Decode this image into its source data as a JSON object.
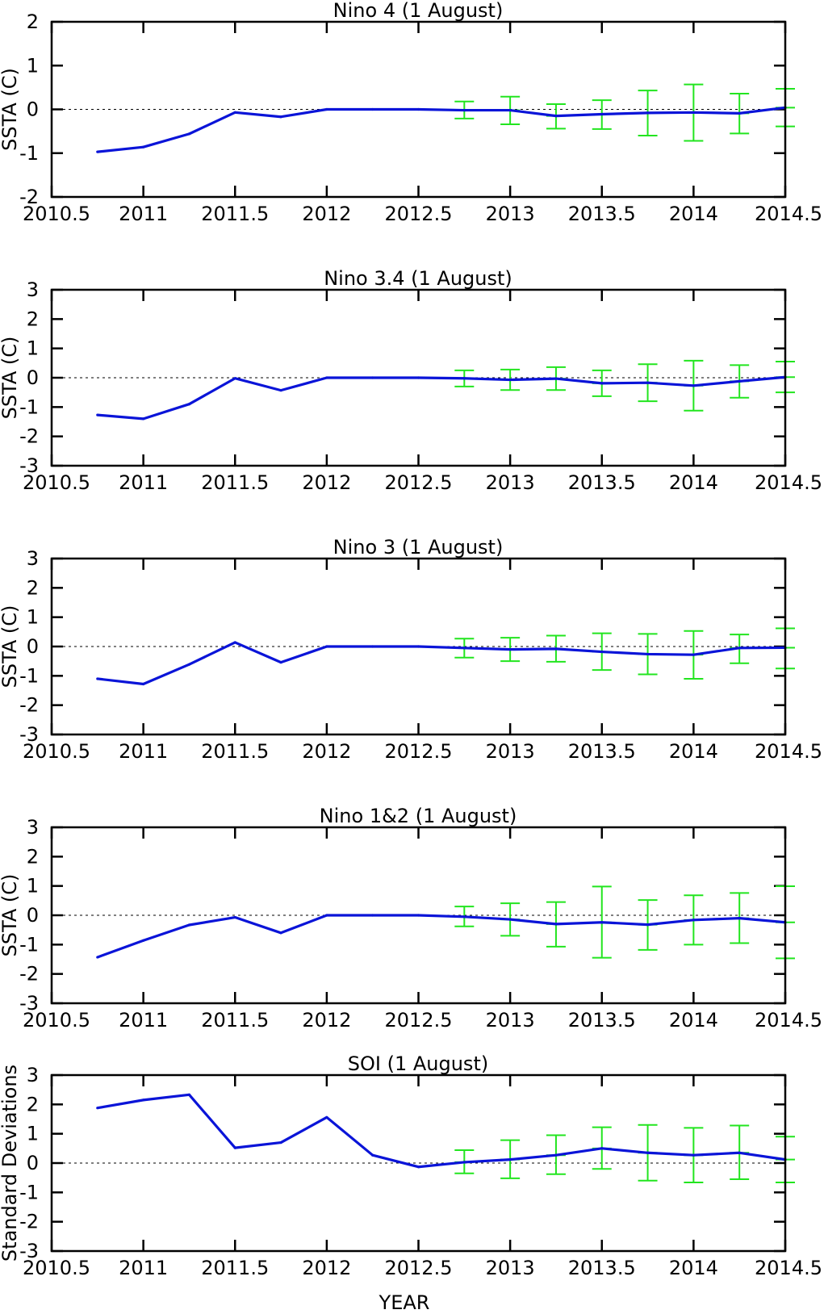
{
  "figure": {
    "xlabel": "YEAR",
    "colors": {
      "line": "#0a14d8",
      "errorbar": "#22e51f",
      "frame": "#000000",
      "zero_line": "#000000"
    }
  },
  "chart_data": [
    {
      "type": "line",
      "title": "Nino 4 (1 August)",
      "ylabel": "SSTA (C)",
      "xlim": [
        2010.5,
        2014.5
      ],
      "ylim": [
        -2,
        2
      ],
      "xticks": [
        "2010.5",
        "2011",
        "2011.5",
        "2012",
        "2012.5",
        "2013",
        "2013.5",
        "2014",
        "2014.5"
      ],
      "yticks": [
        "-2",
        "-1",
        "0",
        "1",
        "2"
      ],
      "series": [
        {
          "x": [
            2010.75,
            2011.0,
            2011.25,
            2011.5,
            2011.75,
            2012.0,
            2012.25,
            2012.5,
            2012.75,
            2013.0,
            2013.25,
            2013.5,
            2013.75,
            2014.0,
            2014.25,
            2014.5
          ],
          "y": [
            -0.97,
            -0.86,
            -0.56,
            -0.07,
            -0.17,
            0.0,
            0.0,
            0.0,
            -0.02,
            -0.02,
            -0.15,
            -0.11,
            -0.08,
            -0.07,
            -0.09,
            0.04
          ]
        }
      ],
      "errorbars": {
        "x": [
          2012.75,
          2013.0,
          2013.25,
          2013.5,
          2013.75,
          2014.0,
          2014.25,
          2014.5
        ],
        "y": [
          -0.02,
          -0.02,
          -0.15,
          -0.11,
          -0.08,
          -0.07,
          -0.09,
          0.04
        ],
        "low": [
          -0.21,
          -0.34,
          -0.44,
          -0.45,
          -0.6,
          -0.72,
          -0.55,
          -0.39
        ],
        "high": [
          0.18,
          0.29,
          0.12,
          0.21,
          0.43,
          0.57,
          0.36,
          0.47
        ]
      }
    },
    {
      "type": "line",
      "title": "Nino 3.4 (1 August)",
      "ylabel": "SSTA (C)",
      "xlim": [
        2010.5,
        2014.5
      ],
      "ylim": [
        -3,
        3
      ],
      "xticks": [
        "2010.5",
        "2011",
        "2011.5",
        "2012",
        "2012.5",
        "2013",
        "2013.5",
        "2014",
        "2014.5"
      ],
      "yticks": [
        "-3",
        "-2",
        "-1",
        "0",
        "1",
        "2",
        "3"
      ],
      "series": [
        {
          "x": [
            2010.75,
            2011.0,
            2011.25,
            2011.5,
            2011.75,
            2012.0,
            2012.25,
            2012.5,
            2012.75,
            2013.0,
            2013.25,
            2013.5,
            2013.75,
            2014.0,
            2014.25,
            2014.5
          ],
          "y": [
            -1.27,
            -1.4,
            -0.9,
            -0.02,
            -0.43,
            0.0,
            0.0,
            0.0,
            -0.02,
            -0.07,
            -0.03,
            -0.19,
            -0.17,
            -0.27,
            -0.12,
            0.02
          ]
        }
      ],
      "errorbars": {
        "x": [
          2012.75,
          2013.0,
          2013.25,
          2013.5,
          2013.75,
          2014.0,
          2014.25,
          2014.5
        ],
        "y": [
          -0.02,
          -0.07,
          -0.03,
          -0.19,
          -0.17,
          -0.27,
          -0.12,
          0.02
        ],
        "low": [
          -0.3,
          -0.42,
          -0.42,
          -0.63,
          -0.8,
          -1.12,
          -0.68,
          -0.5
        ],
        "high": [
          0.25,
          0.28,
          0.36,
          0.25,
          0.46,
          0.58,
          0.43,
          0.55
        ]
      }
    },
    {
      "type": "line",
      "title": "Nino 3 (1 August)",
      "ylabel": "SSTA (C)",
      "xlim": [
        2010.5,
        2014.5
      ],
      "ylim": [
        -3,
        3
      ],
      "xticks": [
        "2010.5",
        "2011",
        "2011.5",
        "2012",
        "2012.5",
        "2013",
        "2013.5",
        "2014",
        "2014.5"
      ],
      "yticks": [
        "-3",
        "-2",
        "-1",
        "0",
        "1",
        "2",
        "3"
      ],
      "series": [
        {
          "x": [
            2010.75,
            2011.0,
            2011.25,
            2011.5,
            2011.75,
            2012.0,
            2012.25,
            2012.5,
            2012.75,
            2013.0,
            2013.25,
            2013.5,
            2013.75,
            2014.0,
            2014.25,
            2014.5
          ],
          "y": [
            -1.1,
            -1.28,
            -0.61,
            0.14,
            -0.54,
            0.0,
            0.0,
            0.0,
            -0.05,
            -0.1,
            -0.08,
            -0.18,
            -0.26,
            -0.28,
            -0.05,
            -0.04
          ]
        }
      ],
      "errorbars": {
        "x": [
          2012.75,
          2013.0,
          2013.25,
          2013.5,
          2013.75,
          2014.0,
          2014.25,
          2014.5
        ],
        "y": [
          -0.05,
          -0.1,
          -0.08,
          -0.18,
          -0.26,
          -0.28,
          -0.05,
          -0.04
        ],
        "low": [
          -0.38,
          -0.5,
          -0.52,
          -0.8,
          -0.95,
          -1.1,
          -0.57,
          -0.75
        ],
        "high": [
          0.27,
          0.3,
          0.37,
          0.45,
          0.43,
          0.53,
          0.41,
          0.62
        ]
      }
    },
    {
      "type": "line",
      "title": "Nino 1&2 (1 August)",
      "ylabel": "SSTA (C)",
      "xlim": [
        2010.5,
        2014.5
      ],
      "ylim": [
        -3,
        3
      ],
      "xticks": [
        "2010.5",
        "2011",
        "2011.5",
        "2012",
        "2012.5",
        "2013",
        "2013.5",
        "2014",
        "2014.5"
      ],
      "yticks": [
        "-3",
        "-2",
        "-1",
        "0",
        "1",
        "2",
        "3"
      ],
      "series": [
        {
          "x": [
            2010.75,
            2011.0,
            2011.25,
            2011.5,
            2011.75,
            2012.0,
            2012.25,
            2012.5,
            2012.75,
            2013.0,
            2013.25,
            2013.5,
            2013.75,
            2014.0,
            2014.25,
            2014.5
          ],
          "y": [
            -1.43,
            -0.86,
            -0.33,
            -0.07,
            -0.6,
            0.0,
            0.0,
            0.0,
            -0.05,
            -0.14,
            -0.3,
            -0.24,
            -0.32,
            -0.16,
            -0.1,
            -0.24
          ]
        }
      ],
      "errorbars": {
        "x": [
          2012.75,
          2013.0,
          2013.25,
          2013.5,
          2013.75,
          2014.0,
          2014.25,
          2014.5
        ],
        "y": [
          -0.05,
          -0.14,
          -0.3,
          -0.24,
          -0.32,
          -0.16,
          -0.1,
          -0.24
        ],
        "low": [
          -0.38,
          -0.7,
          -1.07,
          -1.45,
          -1.18,
          -1.0,
          -0.95,
          -1.47
        ],
        "high": [
          0.3,
          0.41,
          0.45,
          0.98,
          0.52,
          0.68,
          0.76,
          0.99
        ]
      }
    },
    {
      "type": "line",
      "title": "SOI (1 August)",
      "ylabel": "Standard Deviations",
      "xlim": [
        2010.5,
        2014.5
      ],
      "ylim": [
        -3,
        3
      ],
      "xticks": [
        "2010.5",
        "2011",
        "2011.5",
        "2012",
        "2012.5",
        "2013",
        "2013.5",
        "2014",
        "2014.5"
      ],
      "yticks": [
        "-3",
        "-2",
        "-1",
        "0",
        "1",
        "2",
        "3"
      ],
      "series": [
        {
          "x": [
            2010.75,
            2011.0,
            2011.25,
            2011.5,
            2011.75,
            2012.0,
            2012.25,
            2012.5,
            2012.75,
            2013.0,
            2013.25,
            2013.5,
            2013.75,
            2014.0,
            2014.25,
            2014.5
          ],
          "y": [
            1.88,
            2.15,
            2.33,
            0.52,
            0.7,
            1.56,
            0.27,
            -0.13,
            0.03,
            0.12,
            0.27,
            0.5,
            0.35,
            0.27,
            0.35,
            0.12
          ]
        }
      ],
      "errorbars": {
        "x": [
          2012.75,
          2013.0,
          2013.25,
          2013.5,
          2013.75,
          2014.0,
          2014.25,
          2014.5
        ],
        "y": [
          0.03,
          0.12,
          0.27,
          0.5,
          0.35,
          0.27,
          0.35,
          0.12
        ],
        "low": [
          -0.35,
          -0.52,
          -0.38,
          -0.2,
          -0.6,
          -0.66,
          -0.55,
          -0.66
        ],
        "high": [
          0.44,
          0.78,
          0.95,
          1.22,
          1.3,
          1.2,
          1.28,
          0.9
        ]
      }
    }
  ]
}
